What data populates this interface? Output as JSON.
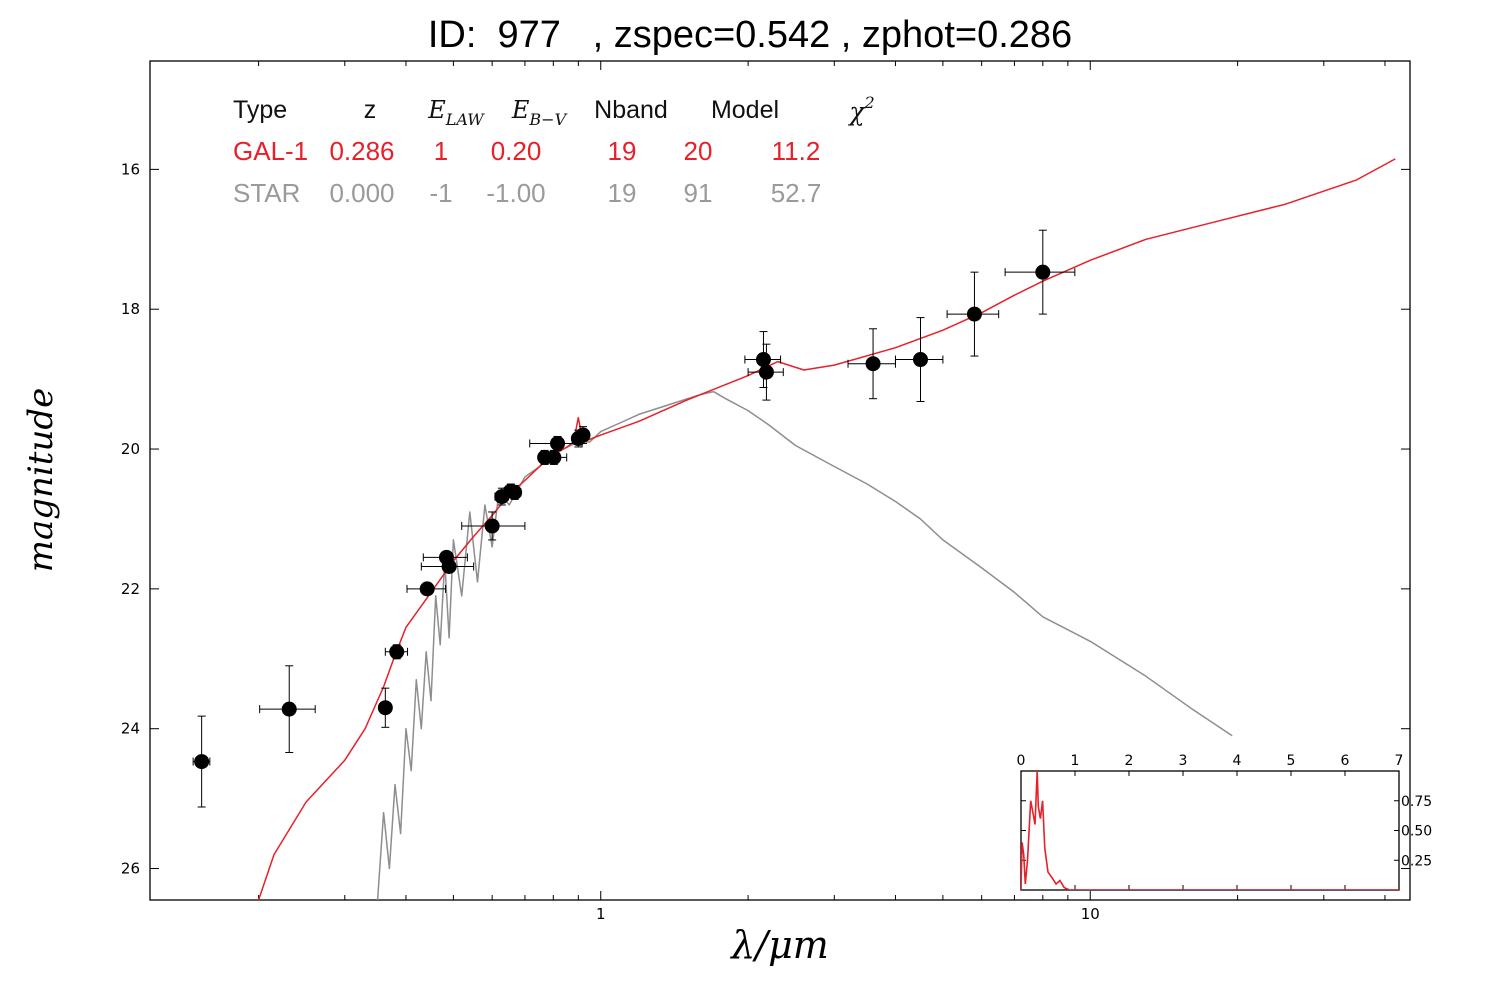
{
  "title": "ID:  977   , zspec=0.542 , zphot=0.286",
  "chart_data": {
    "type": "scatter",
    "xlabel": "λ/μm",
    "ylabel": "magnitude",
    "xscale": "log",
    "xlim": [
      0.12,
      45
    ],
    "ylim": [
      26.45,
      14.45
    ],
    "x_ticks": [
      {
        "value": 1,
        "label": "1"
      },
      {
        "value": 10,
        "label": "10"
      }
    ],
    "y_ticks": [
      {
        "value": 16,
        "label": "16"
      },
      {
        "value": 18,
        "label": "18"
      },
      {
        "value": 20,
        "label": "20"
      },
      {
        "value": 22,
        "label": "22"
      },
      {
        "value": 24,
        "label": "24"
      },
      {
        "value": 26,
        "label": "26"
      }
    ],
    "fit_table": {
      "headers": [
        "Type",
        "z",
        "E_LAW",
        "E_B−V",
        "Nband",
        "Model",
        "χ²"
      ],
      "rows": [
        {
          "cells": [
            "GAL-1",
            "0.286",
            "1",
            "0.20",
            "19",
            "20",
            "11.2"
          ],
          "color": "#e8202a"
        },
        {
          "cells": [
            "STAR",
            "0.000",
            "-1",
            "-1.00",
            "19",
            "91",
            "52.7"
          ],
          "color": "#9a9a9a"
        }
      ]
    },
    "observations": [
      {
        "x": 0.153,
        "y": 24.47,
        "xerr_lo": 0.006,
        "xerr_hi": 0.006,
        "yerr": 0.65
      },
      {
        "x": 0.231,
        "y": 23.72,
        "xerr_lo": 0.03,
        "xerr_hi": 0.03,
        "yerr": 0.62
      },
      {
        "x": 0.363,
        "y": 23.7,
        "xerr_lo": 0.008,
        "xerr_hi": 0.008,
        "yerr": 0.28
      },
      {
        "x": 0.383,
        "y": 22.9,
        "xerr_lo": 0.02,
        "xerr_hi": 0.02,
        "yerr": 0.1
      },
      {
        "x": 0.442,
        "y": 22.0,
        "xerr_lo": 0.04,
        "xerr_hi": 0.04,
        "yerr": 0.06
      },
      {
        "x": 0.484,
        "y": 21.55,
        "xerr_lo": 0.05,
        "xerr_hi": 0.05,
        "yerr": 0.06
      },
      {
        "x": 0.49,
        "y": 21.68,
        "xerr_lo": 0.06,
        "xerr_hi": 0.06,
        "yerr": 0.06
      },
      {
        "x": 0.6,
        "y": 21.1,
        "xerr_lo": 0.08,
        "xerr_hi": 0.1,
        "yerr": 0.2
      },
      {
        "x": 0.628,
        "y": 20.68,
        "xerr_lo": 0.02,
        "xerr_hi": 0.02,
        "yerr": 0.12
      },
      {
        "x": 0.655,
        "y": 20.6,
        "xerr_lo": 0.02,
        "xerr_hi": 0.02,
        "yerr": 0.1
      },
      {
        "x": 0.667,
        "y": 20.62,
        "xerr_lo": 0.02,
        "xerr_hi": 0.02,
        "yerr": 0.1
      },
      {
        "x": 0.768,
        "y": 20.12,
        "xerr_lo": 0.02,
        "xerr_hi": 0.02,
        "yerr": 0.1
      },
      {
        "x": 0.802,
        "y": 20.12,
        "xerr_lo": 0.05,
        "xerr_hi": 0.05,
        "yerr": 0.1
      },
      {
        "x": 0.816,
        "y": 19.92,
        "xerr_lo": 0.1,
        "xerr_hi": 0.1,
        "yerr": 0.1
      },
      {
        "x": 0.9,
        "y": 19.85,
        "xerr_lo": 0.02,
        "xerr_hi": 0.02,
        "yerr": 0.12
      },
      {
        "x": 0.92,
        "y": 19.8,
        "xerr_lo": 0.02,
        "xerr_hi": 0.02,
        "yerr": 0.12
      },
      {
        "x": 2.15,
        "y": 18.72,
        "xerr_lo": 0.18,
        "xerr_hi": 0.18,
        "yerr": 0.4
      },
      {
        "x": 2.18,
        "y": 18.9,
        "xerr_lo": 0.18,
        "xerr_hi": 0.18,
        "yerr": 0.4
      },
      {
        "x": 3.6,
        "y": 18.78,
        "xerr_lo": 0.4,
        "xerr_hi": 0.4,
        "yerr": 0.5
      },
      {
        "x": 4.5,
        "y": 18.72,
        "xerr_lo": 0.5,
        "xerr_hi": 0.5,
        "yerr": 0.6
      },
      {
        "x": 5.8,
        "y": 18.07,
        "xerr_lo": 0.7,
        "xerr_hi": 0.7,
        "yerr": 0.6
      },
      {
        "x": 8.0,
        "y": 17.47,
        "xerr_lo": 1.3,
        "xerr_hi": 1.3,
        "yerr": 0.6
      }
    ],
    "series": [
      {
        "color": "#e8202a",
        "points": [
          [
            0.2,
            26.45
          ],
          [
            0.215,
            25.8
          ],
          [
            0.25,
            25.05
          ],
          [
            0.3,
            24.45
          ],
          [
            0.33,
            24.0
          ],
          [
            0.36,
            23.4
          ],
          [
            0.38,
            22.95
          ],
          [
            0.4,
            22.55
          ],
          [
            0.45,
            22.05
          ],
          [
            0.5,
            21.6
          ],
          [
            0.55,
            21.25
          ],
          [
            0.6,
            20.95
          ],
          [
            0.65,
            20.65
          ],
          [
            0.7,
            20.45
          ],
          [
            0.75,
            20.25
          ],
          [
            0.8,
            20.08
          ],
          [
            0.85,
            19.98
          ],
          [
            0.88,
            19.9
          ],
          [
            0.9,
            19.55
          ],
          [
            0.92,
            19.9
          ],
          [
            1.0,
            19.8
          ],
          [
            1.2,
            19.6
          ],
          [
            1.5,
            19.3
          ],
          [
            2.0,
            18.95
          ],
          [
            2.3,
            18.75
          ],
          [
            2.6,
            18.87
          ],
          [
            3.0,
            18.8
          ],
          [
            4.0,
            18.55
          ],
          [
            5.0,
            18.3
          ],
          [
            6.0,
            18.05
          ],
          [
            7.0,
            17.8
          ],
          [
            8.0,
            17.6
          ],
          [
            10.0,
            17.3
          ],
          [
            13.0,
            17.0
          ],
          [
            18.0,
            16.75
          ],
          [
            25.0,
            16.5
          ],
          [
            35.0,
            16.15
          ],
          [
            42.0,
            15.85
          ]
        ]
      },
      {
        "color": "#8e8e8e",
        "points": [
          [
            0.35,
            26.45
          ],
          [
            0.36,
            25.2
          ],
          [
            0.37,
            26.0
          ],
          [
            0.38,
            24.8
          ],
          [
            0.39,
            25.5
          ],
          [
            0.4,
            24.0
          ],
          [
            0.41,
            24.6
          ],
          [
            0.42,
            23.3
          ],
          [
            0.43,
            24.0
          ],
          [
            0.44,
            22.9
          ],
          [
            0.45,
            23.6
          ],
          [
            0.46,
            22.1
          ],
          [
            0.47,
            22.8
          ],
          [
            0.48,
            21.6
          ],
          [
            0.49,
            22.7
          ],
          [
            0.5,
            21.3
          ],
          [
            0.52,
            22.1
          ],
          [
            0.54,
            20.9
          ],
          [
            0.56,
            21.9
          ],
          [
            0.58,
            20.8
          ],
          [
            0.6,
            21.4
          ],
          [
            0.62,
            20.6
          ],
          [
            0.65,
            20.8
          ],
          [
            0.7,
            20.4
          ],
          [
            0.75,
            20.25
          ],
          [
            0.8,
            20.05
          ],
          [
            0.85,
            19.98
          ],
          [
            0.9,
            19.9
          ],
          [
            0.95,
            19.9
          ],
          [
            1.0,
            19.75
          ],
          [
            1.1,
            19.62
          ],
          [
            1.2,
            19.5
          ],
          [
            1.4,
            19.35
          ],
          [
            1.6,
            19.22
          ],
          [
            1.7,
            19.18
          ],
          [
            1.8,
            19.28
          ],
          [
            2.0,
            19.45
          ],
          [
            2.2,
            19.65
          ],
          [
            2.5,
            19.95
          ],
          [
            3.0,
            20.25
          ],
          [
            3.5,
            20.5
          ],
          [
            4.0,
            20.75
          ],
          [
            4.5,
            21.0
          ],
          [
            5.0,
            21.3
          ],
          [
            6.0,
            21.7
          ],
          [
            7.0,
            22.05
          ],
          [
            8.0,
            22.4
          ],
          [
            10.0,
            22.75
          ],
          [
            13.0,
            23.25
          ],
          [
            16.0,
            23.7
          ],
          [
            19.5,
            24.1
          ]
        ]
      }
    ],
    "inset": {
      "type": "line",
      "xlim": [
        0,
        7
      ],
      "ylim": [
        0,
        1.0
      ],
      "x_ticks": [
        {
          "value": 0,
          "label": "0"
        },
        {
          "value": 1,
          "label": "1"
        },
        {
          "value": 2,
          "label": "2"
        },
        {
          "value": 3,
          "label": "3"
        },
        {
          "value": 4,
          "label": "4"
        },
        {
          "value": 5,
          "label": "5"
        },
        {
          "value": 6,
          "label": "6"
        },
        {
          "value": 7,
          "label": "7"
        }
      ],
      "y_ticks": [
        {
          "value": 0.25,
          "label": "0.25"
        },
        {
          "value": 0.5,
          "label": "0.50"
        },
        {
          "value": 0.75,
          "label": "0.75"
        }
      ],
      "color": "#e8202a",
      "points": [
        [
          0.0,
          0.0
        ],
        [
          0.02,
          0.4
        ],
        [
          0.05,
          0.3
        ],
        [
          0.08,
          0.05
        ],
        [
          0.12,
          0.25
        ],
        [
          0.18,
          0.75
        ],
        [
          0.22,
          0.65
        ],
        [
          0.26,
          0.55
        ],
        [
          0.3,
          1.0
        ],
        [
          0.32,
          0.7
        ],
        [
          0.36,
          0.6
        ],
        [
          0.4,
          0.75
        ],
        [
          0.44,
          0.35
        ],
        [
          0.5,
          0.15
        ],
        [
          0.58,
          0.1
        ],
        [
          0.65,
          0.05
        ],
        [
          0.72,
          0.08
        ],
        [
          0.8,
          0.02
        ],
        [
          0.9,
          0.0
        ],
        [
          7.0,
          0.0
        ]
      ]
    }
  }
}
